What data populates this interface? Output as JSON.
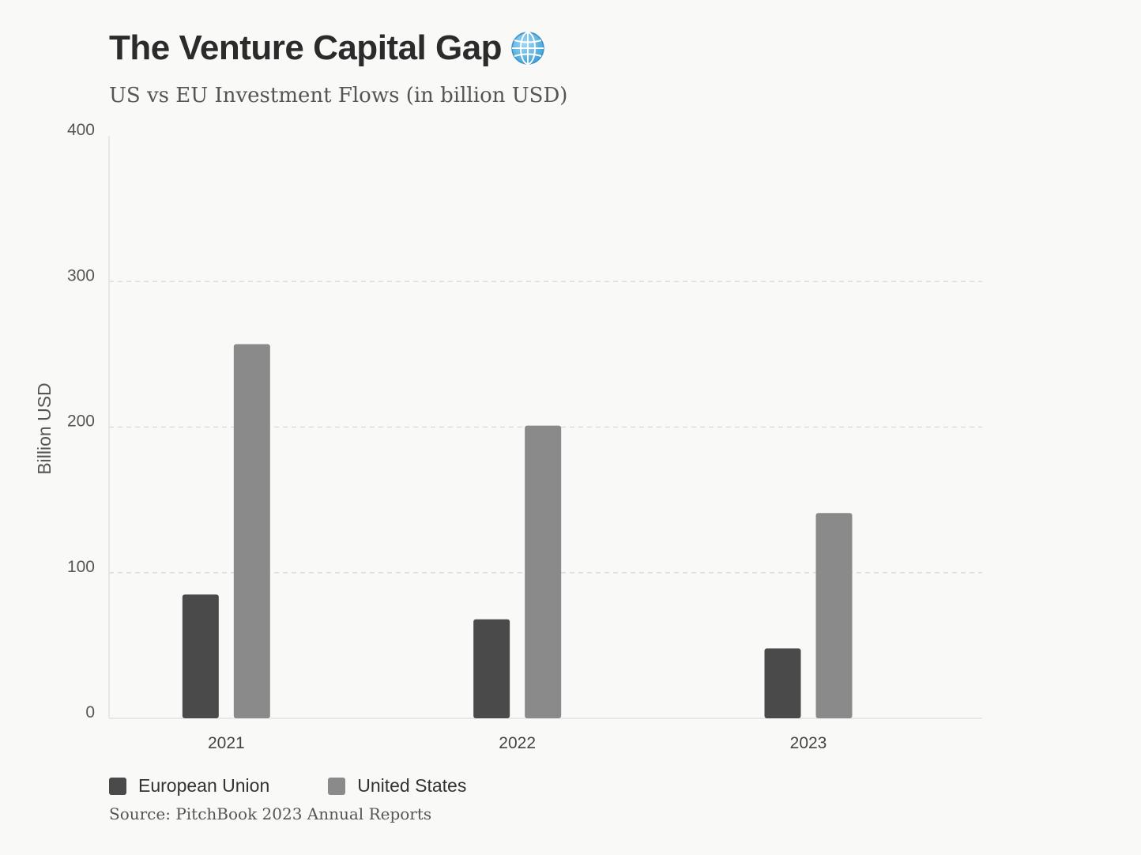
{
  "header": {
    "title": "The Venture Capital Gap",
    "title_icon": "globe-icon",
    "subtitle": "US vs EU Investment Flows (in billion USD)"
  },
  "chart_data": {
    "type": "bar",
    "categories": [
      "2021",
      "2022",
      "2023"
    ],
    "series": [
      {
        "name": "European Union",
        "values": [
          85,
          68,
          48
        ],
        "color": "#4a4a4a"
      },
      {
        "name": "United States",
        "values": [
          257,
          201,
          141
        ],
        "color": "#8a8a8a"
      }
    ],
    "ylabel": "Billion USD",
    "ylim": [
      0,
      400
    ],
    "yticks": [
      0,
      100,
      200,
      300,
      400
    ],
    "grid": true,
    "legend": "bottom-left"
  },
  "footer": {
    "source": "Source: PitchBook 2023 Annual Reports"
  }
}
